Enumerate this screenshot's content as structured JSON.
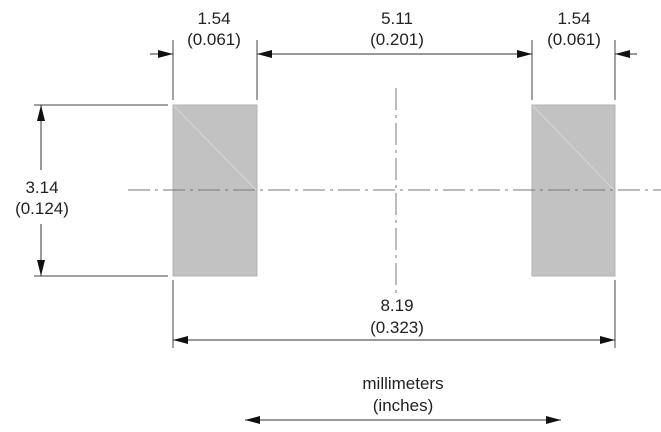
{
  "dimensions": {
    "pad_width": {
      "mm": "1.54",
      "in": "(0.061)"
    },
    "pad_gap": {
      "mm": "5.11",
      "in": "(0.201)"
    },
    "pad_width_right": {
      "mm": "1.54",
      "in": "(0.061)"
    },
    "pad_height": {
      "mm": "3.14",
      "in": "(0.124)"
    },
    "overall_length": {
      "mm": "8.19",
      "in": "(0.323)"
    }
  },
  "legend": {
    "primary_unit": "millimeters",
    "secondary_unit": "(inches)"
  },
  "colors": {
    "pad_fill": "#c2c2c2",
    "line": "#333333",
    "centerline": "#777777"
  }
}
